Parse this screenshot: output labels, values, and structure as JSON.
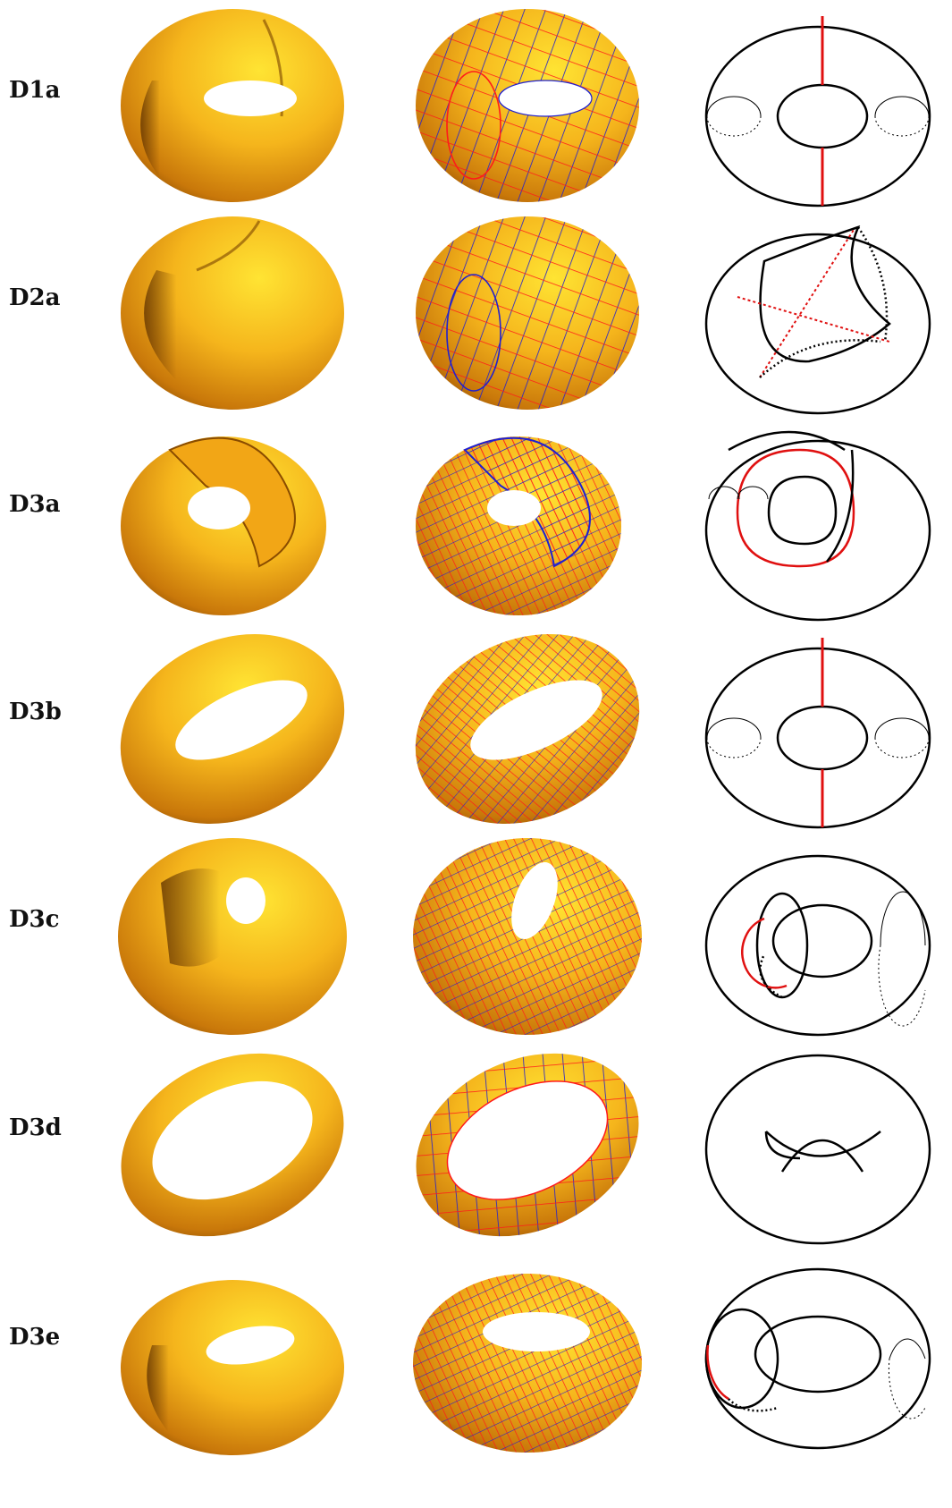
{
  "figure": {
    "rows": [
      {
        "label": "D1a"
      },
      {
        "label": "D2a"
      },
      {
        "label": "D3a"
      },
      {
        "label": "D3b"
      },
      {
        "label": "D3c"
      },
      {
        "label": "D3d"
      },
      {
        "label": "D3e"
      }
    ]
  },
  "colors": {
    "surface_light": "#ffe433",
    "surface_mid": "#f0a40e",
    "surface_dark": "#6e3a00",
    "mesh_red": "#ff1a1a",
    "mesh_blue": "#2020d0",
    "line_black": "#000000",
    "line_red": "#e01010"
  }
}
